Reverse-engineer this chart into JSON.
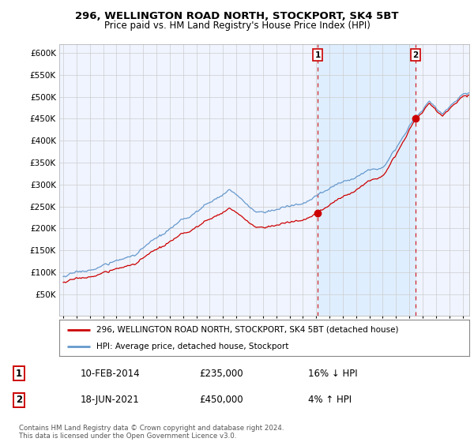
{
  "title": "296, WELLINGTON ROAD NORTH, STOCKPORT, SK4 5BT",
  "subtitle": "Price paid vs. HM Land Registry's House Price Index (HPI)",
  "ylim": [
    0,
    620000
  ],
  "yticks": [
    0,
    50000,
    100000,
    150000,
    200000,
    250000,
    300000,
    350000,
    400000,
    450000,
    500000,
    550000,
    600000
  ],
  "xlim_start": 1994.7,
  "xlim_end": 2025.5,
  "background_color": "#ffffff",
  "plot_bg_color": "#f0f4ff",
  "grid_color": "#cccccc",
  "transaction1_x": 2014.11,
  "transaction1_y": 235000,
  "transaction1_label": "1",
  "transaction1_date": "10-FEB-2014",
  "transaction1_price": "£235,000",
  "transaction1_hpi": "16% ↓ HPI",
  "transaction2_x": 2021.46,
  "transaction2_y": 450000,
  "transaction2_label": "2",
  "transaction2_date": "18-JUN-2021",
  "transaction2_price": "£450,000",
  "transaction2_hpi": "4% ↑ HPI",
  "line1_color": "#cc0000",
  "line2_color": "#6699cc",
  "shade_color": "#ddeeff",
  "legend_label1": "296, WELLINGTON ROAD NORTH, STOCKPORT, SK4 5BT (detached house)",
  "legend_label2": "HPI: Average price, detached house, Stockport",
  "footer": "Contains HM Land Registry data © Crown copyright and database right 2024.\nThis data is licensed under the Open Government Licence v3.0."
}
